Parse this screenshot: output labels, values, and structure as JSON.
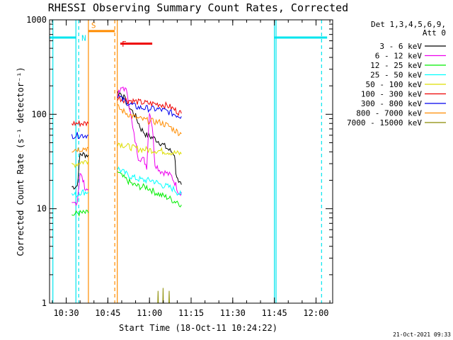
{
  "chart_data": {
    "type": "line",
    "title": "RHESSI Observing Summary Count Rates, Corrected",
    "xlabel": "Start Time (18-Oct-11 10:24:22)",
    "ylabel": "Corrected Count Rate (s⁻¹ detector⁻¹)",
    "ylog": true,
    "ylim": [
      1,
      1000
    ],
    "xlim_minutes_since_10_24": [
      0,
      102
    ],
    "x_ticks": [
      {
        "label": "10:30",
        "m": 6
      },
      {
        "label": "10:45",
        "m": 21
      },
      {
        "label": "11:00",
        "m": 36
      },
      {
        "label": "11:15",
        "m": 51
      },
      {
        "label": "11:30",
        "m": 66
      },
      {
        "label": "11:45",
        "m": 81
      },
      {
        "label": "12:00",
        "m": 96
      }
    ],
    "y_ticks": [
      {
        "label": "1",
        "v": 1
      },
      {
        "label": "10",
        "v": 10
      },
      {
        "label": "100",
        "v": 100
      },
      {
        "label": "1000",
        "v": 1000
      }
    ],
    "legend_header": [
      "Det 1,3,4,5,6,9,",
      "Att 0"
    ],
    "legend_placement": "right",
    "timestamp": "21-Oct-2021 09:33",
    "markers": [
      {
        "label": "N",
        "color": "#00e5ee",
        "m": 10.5
      },
      {
        "label": "S",
        "color": "#ff8c00",
        "m": 14
      },
      {
        "label": "F",
        "color": "#ee0000",
        "m": 25
      }
    ],
    "annotation_bars": [
      {
        "color": "#00e5ee",
        "y": 650,
        "segments": [
          [
            0,
            9.5
          ],
          [
            81,
            100
          ]
        ]
      },
      {
        "color": "#ff8c00",
        "y": 760,
        "segments": [
          [
            14,
            23.5
          ]
        ]
      },
      {
        "color": "#ee0000",
        "y": 560,
        "segments": [
          [
            25.5,
            37
          ]
        ]
      }
    ],
    "series": [
      {
        "name": "3 - 6 keV",
        "color": "#000000",
        "segments": [
          [
            [
              8,
              17
            ],
            [
              10,
              17.5
            ],
            [
              11,
              38
            ],
            [
              14,
              37
            ]
          ],
          [
            [
              24.5,
              170
            ],
            [
              26,
              165
            ],
            [
              28,
              130
            ],
            [
              31,
              95
            ],
            [
              33,
              70
            ],
            [
              35,
              60
            ],
            [
              38,
              55
            ],
            [
              40,
              50
            ],
            [
              43,
              42
            ],
            [
              45,
              38
            ],
            [
              45.5,
              25
            ],
            [
              46.5,
              18
            ],
            [
              47.5,
              18
            ]
          ]
        ]
      },
      {
        "name": "6 - 12 keV",
        "color": "#ee00ee",
        "segments": [
          [
            [
              8,
              11
            ],
            [
              10,
              12
            ],
            [
              11,
              24
            ],
            [
              12,
              20
            ],
            [
              13,
              16
            ],
            [
              14,
              16
            ]
          ],
          [
            [
              24.5,
              160
            ],
            [
              26.5,
              195
            ],
            [
              28,
              170
            ],
            [
              30,
              70
            ],
            [
              32,
              35
            ],
            [
              34,
              33
            ],
            [
              35,
              28
            ],
            [
              36,
              110
            ],
            [
              37,
              75
            ],
            [
              38,
              30
            ],
            [
              40,
              25
            ],
            [
              42,
              24
            ],
            [
              44,
              22
            ],
            [
              45.5,
              18
            ],
            [
              46.5,
              15
            ],
            [
              47.5,
              15
            ]
          ]
        ]
      },
      {
        "name": "12 - 25 keV",
        "color": "#00ee00",
        "segments": [
          [
            [
              8,
              8.5
            ],
            [
              10,
              9
            ],
            [
              11,
              9
            ],
            [
              14,
              9
            ]
          ],
          [
            [
              24.5,
              25
            ],
            [
              26,
              22
            ],
            [
              28,
              20
            ],
            [
              30,
              18
            ],
            [
              33,
              17
            ],
            [
              35,
              17
            ],
            [
              38,
              15
            ],
            [
              40,
              14
            ],
            [
              43,
              13
            ],
            [
              45,
              12
            ],
            [
              46,
              12
            ],
            [
              47.5,
              11
            ]
          ]
        ]
      },
      {
        "name": "25 - 50 keV",
        "color": "#00ffff",
        "segments": [
          [
            [
              8,
              14
            ],
            [
              10,
              14
            ],
            [
              11,
              15
            ],
            [
              14,
              15
            ]
          ],
          [
            [
              24.5,
              27
            ],
            [
              26,
              25
            ],
            [
              28,
              23
            ],
            [
              31,
              21
            ],
            [
              34,
              20
            ],
            [
              37,
              20
            ],
            [
              40,
              18
            ],
            [
              43,
              17
            ],
            [
              45,
              16
            ],
            [
              46,
              15
            ],
            [
              47.5,
              14
            ]
          ]
        ]
      },
      {
        "name": "50 - 100 keV",
        "color": "#dddd00",
        "segments": [
          [
            [
              8,
              29
            ],
            [
              10,
              30
            ],
            [
              11,
              31
            ],
            [
              14,
              32
            ]
          ],
          [
            [
              24.5,
              50
            ],
            [
              26,
              48
            ],
            [
              29,
              45
            ],
            [
              32,
              43
            ],
            [
              36,
              42
            ],
            [
              40,
              41
            ],
            [
              43,
              40
            ],
            [
              45,
              39
            ],
            [
              47.5,
              38
            ]
          ]
        ]
      },
      {
        "name": "100 - 300 keV",
        "color": "#ee0000",
        "segments": [
          [
            [
              8,
              80
            ],
            [
              10,
              80
            ],
            [
              11,
              80
            ],
            [
              14,
              80
            ]
          ],
          [
            [
              24.5,
              150
            ],
            [
              26,
              145
            ],
            [
              29,
              140
            ],
            [
              32,
              135
            ],
            [
              36,
              130
            ],
            [
              40,
              128
            ],
            [
              43,
              122
            ],
            [
              45,
              112
            ],
            [
              47.5,
              102
            ]
          ]
        ]
      },
      {
        "name": "300 - 800 keV",
        "color": "#0000ee",
        "segments": [
          [
            [
              8,
              60
            ],
            [
              10,
              60
            ],
            [
              11,
              60
            ],
            [
              14,
              60
            ]
          ],
          [
            [
              24.5,
              160
            ],
            [
              26,
              145
            ],
            [
              29,
              128
            ],
            [
              32,
              118
            ],
            [
              36,
              115
            ],
            [
              40,
              112
            ],
            [
              43,
              106
            ],
            [
              45,
              100
            ],
            [
              47.5,
              95
            ]
          ]
        ]
      },
      {
        "name": "800 - 7000 keV",
        "color": "#ff8c00",
        "segments": [
          [
            [
              8,
              42
            ],
            [
              10,
              43
            ],
            [
              11,
              43
            ],
            [
              14,
              44
            ]
          ],
          [
            [
              24.5,
              120
            ],
            [
              26,
              110
            ],
            [
              29,
              98
            ],
            [
              32,
              90
            ],
            [
              36,
              85
            ],
            [
              40,
              82
            ],
            [
              43,
              75
            ],
            [
              45,
              68
            ],
            [
              47.5,
              62
            ]
          ]
        ]
      },
      {
        "name": "7000 - 15000 keV",
        "color": "#8b8b00",
        "segments": [
          [
            [
              39,
              1
            ],
            [
              39.1,
              1.35
            ],
            [
              39.2,
              1
            ]
          ],
          [
            [
              40.8,
              1
            ],
            [
              40.9,
              1.45
            ],
            [
              41,
              1
            ]
          ],
          [
            [
              43,
              1
            ],
            [
              43.1,
              1.35
            ],
            [
              43.2,
              1
            ]
          ]
        ]
      }
    ]
  }
}
